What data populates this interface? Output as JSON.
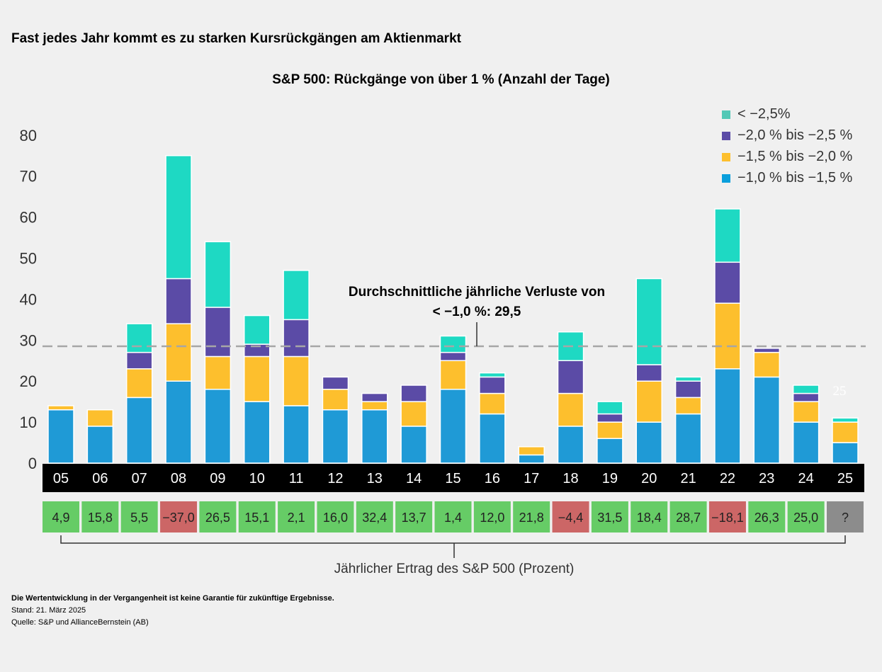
{
  "title": "Fast jedes Jahr kommt es zu starken Kursrückgängen am Aktienmarkt",
  "chart_data": {
    "type": "bar",
    "stacked": true,
    "title": "S&P 500: Rückgänge von über 1 % (Anzahl der Tage)",
    "ylim": [
      0,
      80
    ],
    "yticks": [
      0,
      10,
      20,
      30,
      40,
      50,
      60,
      70,
      80
    ],
    "grid": false,
    "legend_position": "top-right",
    "categories": [
      "05",
      "06",
      "07",
      "08",
      "09",
      "10",
      "11",
      "12",
      "13",
      "14",
      "15",
      "16",
      "17",
      "18",
      "19",
      "20",
      "21",
      "22",
      "23",
      "24",
      "25"
    ],
    "series": [
      {
        "name": "−1,0 % bis −1,5 %",
        "color": "#1f9ad6",
        "values": [
          13,
          9,
          16,
          20,
          18,
          15,
          14,
          13,
          13,
          9,
          18,
          12,
          2,
          9,
          6,
          10,
          12,
          23,
          21,
          10,
          5
        ]
      },
      {
        "name": "−1,5 % bis −2,0 %",
        "color": "#fdbf2d",
        "values": [
          1,
          4,
          7,
          14,
          8,
          11,
          12,
          5,
          2,
          6,
          7,
          5,
          2,
          8,
          4,
          10,
          4,
          16,
          6,
          5,
          5
        ]
      },
      {
        "name": "−2,0 % bis −2,5 %",
        "color": "#5b4ba6",
        "values": [
          0,
          0,
          4,
          11,
          12,
          3,
          9,
          3,
          2,
          4,
          2,
          4,
          0,
          8,
          2,
          4,
          4,
          10,
          1,
          2,
          0
        ]
      },
      {
        "name": "< −2,5%",
        "color": "#1ed9c3",
        "values": [
          0,
          0,
          7,
          30,
          16,
          7,
          12,
          0,
          0,
          0,
          4,
          1,
          0,
          7,
          3,
          21,
          1,
          13,
          0,
          2,
          1
        ]
      }
    ],
    "legend_colors": [
      "#52c8b6",
      "#5b4ba6",
      "#fdbf2d",
      "#0a9fdc"
    ],
    "average": {
      "value": 29.5,
      "label_line1": "Durchschnittliche jährliche Verluste von",
      "label_line2": "< −1,0 %: 29,5"
    },
    "stray_label": "25",
    "returns": {
      "label": "Jährlicher Ertrag des S&P 500 (Prozent)",
      "values": [
        "4,9",
        "15,8",
        "5,5",
        "−37,0",
        "26,5",
        "15,1",
        "2,1",
        "16,0",
        "32,4",
        "13,7",
        "1,4",
        "12,0",
        "21,8",
        "−4,4",
        "31,5",
        "18,4",
        "28,7",
        "−18,1",
        "26,3",
        "25,0",
        "?"
      ],
      "colors": {
        "positive": "#66cc66",
        "negative": "#cc6666",
        "unknown": "#8c8c8c"
      }
    }
  },
  "footer": {
    "disclaimer": "Die Wertentwicklung in der Vergangenheit ist keine Garantie für zukünftige Ergebnisse.",
    "date": "Stand: 21. März 2025",
    "source": "Quelle: S&P und AllianceBernstein (AB)"
  }
}
